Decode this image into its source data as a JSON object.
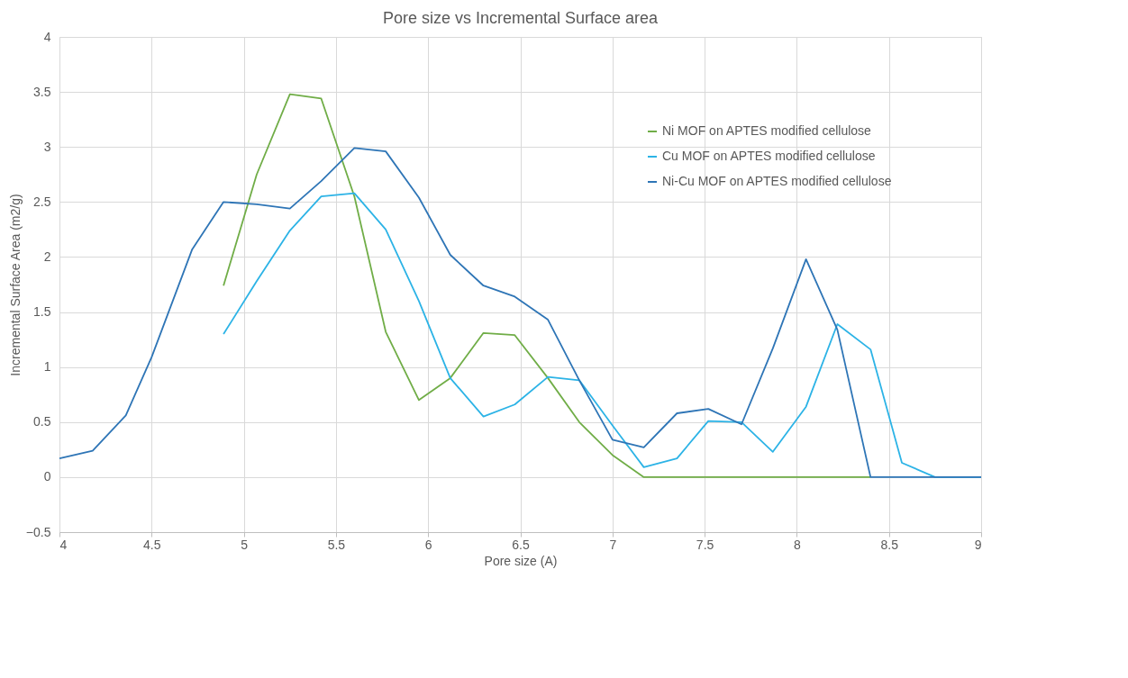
{
  "chart_data": {
    "type": "line",
    "title": "Pore size vs Incremental Surface area",
    "xlabel": "Pore size (A)",
    "ylabel": "Incremental Surface Area (m2/g)",
    "xlim": [
      4,
      9
    ],
    "xticks": [
      4,
      4.5,
      5,
      5.5,
      6,
      6.5,
      7,
      7.5,
      8,
      8.5,
      9
    ],
    "ylim": [
      -0.5,
      4
    ],
    "yticks": [
      -0.5,
      0,
      0.5,
      1,
      1.5,
      2,
      2.5,
      3,
      3.5,
      4
    ],
    "grid": true,
    "legend": "top right",
    "marker": "none",
    "line_style": "solid",
    "series": [
      {
        "name": "Ni MOF on APTES modified cellulose",
        "color": "#70ad47",
        "x": [
          4.89,
          5.07,
          5.25,
          5.42,
          5.6,
          5.77,
          5.95,
          6.12,
          6.3,
          6.47,
          6.65,
          6.82,
          7.0,
          7.17,
          7.35,
          7.52,
          7.7,
          7.87,
          8.05,
          8.22,
          8.4
        ],
        "values": [
          1.74,
          2.75,
          3.48,
          3.44,
          2.55,
          1.32,
          0.7,
          0.9,
          1.31,
          1.29,
          0.9,
          0.5,
          0.2,
          0,
          0,
          0,
          0,
          0,
          0,
          0,
          0
        ]
      },
      {
        "name": "Cu MOF on APTES modified cellulose",
        "color": "#2cb3e6",
        "x": [
          4.89,
          5.07,
          5.25,
          5.42,
          5.6,
          5.77,
          5.95,
          6.12,
          6.3,
          6.47,
          6.65,
          6.82,
          7.0,
          7.17,
          7.35,
          7.52,
          7.7,
          7.87,
          8.05,
          8.22,
          8.4,
          8.57,
          8.75,
          8.92,
          9.0
        ],
        "values": [
          1.3,
          1.78,
          2.24,
          2.55,
          2.58,
          2.25,
          1.6,
          0.9,
          0.55,
          0.66,
          0.91,
          0.88,
          0.47,
          0.09,
          0.17,
          0.51,
          0.5,
          0.23,
          0.64,
          1.39,
          1.16,
          0.13,
          0,
          0,
          0
        ]
      },
      {
        "name": "Ni-Cu MOF on APTES modified cellulose",
        "color": "#2e75b6",
        "x": [
          4.0,
          4.18,
          4.36,
          4.5,
          4.72,
          4.89,
          5.07,
          5.25,
          5.42,
          5.6,
          5.77,
          5.95,
          6.12,
          6.3,
          6.47,
          6.65,
          6.82,
          7.0,
          7.17,
          7.35,
          7.52,
          7.7,
          7.87,
          8.05,
          8.22,
          8.4,
          8.57,
          8.75,
          8.92,
          9.0
        ],
        "values": [
          0.17,
          0.24,
          0.56,
          1.09,
          2.07,
          2.5,
          2.48,
          2.44,
          2.69,
          2.99,
          2.96,
          2.54,
          2.02,
          1.74,
          1.64,
          1.43,
          0.88,
          0.34,
          0.27,
          0.58,
          0.62,
          0.48,
          1.17,
          1.98,
          1.34,
          0,
          0,
          0,
          0,
          0
        ]
      }
    ]
  }
}
